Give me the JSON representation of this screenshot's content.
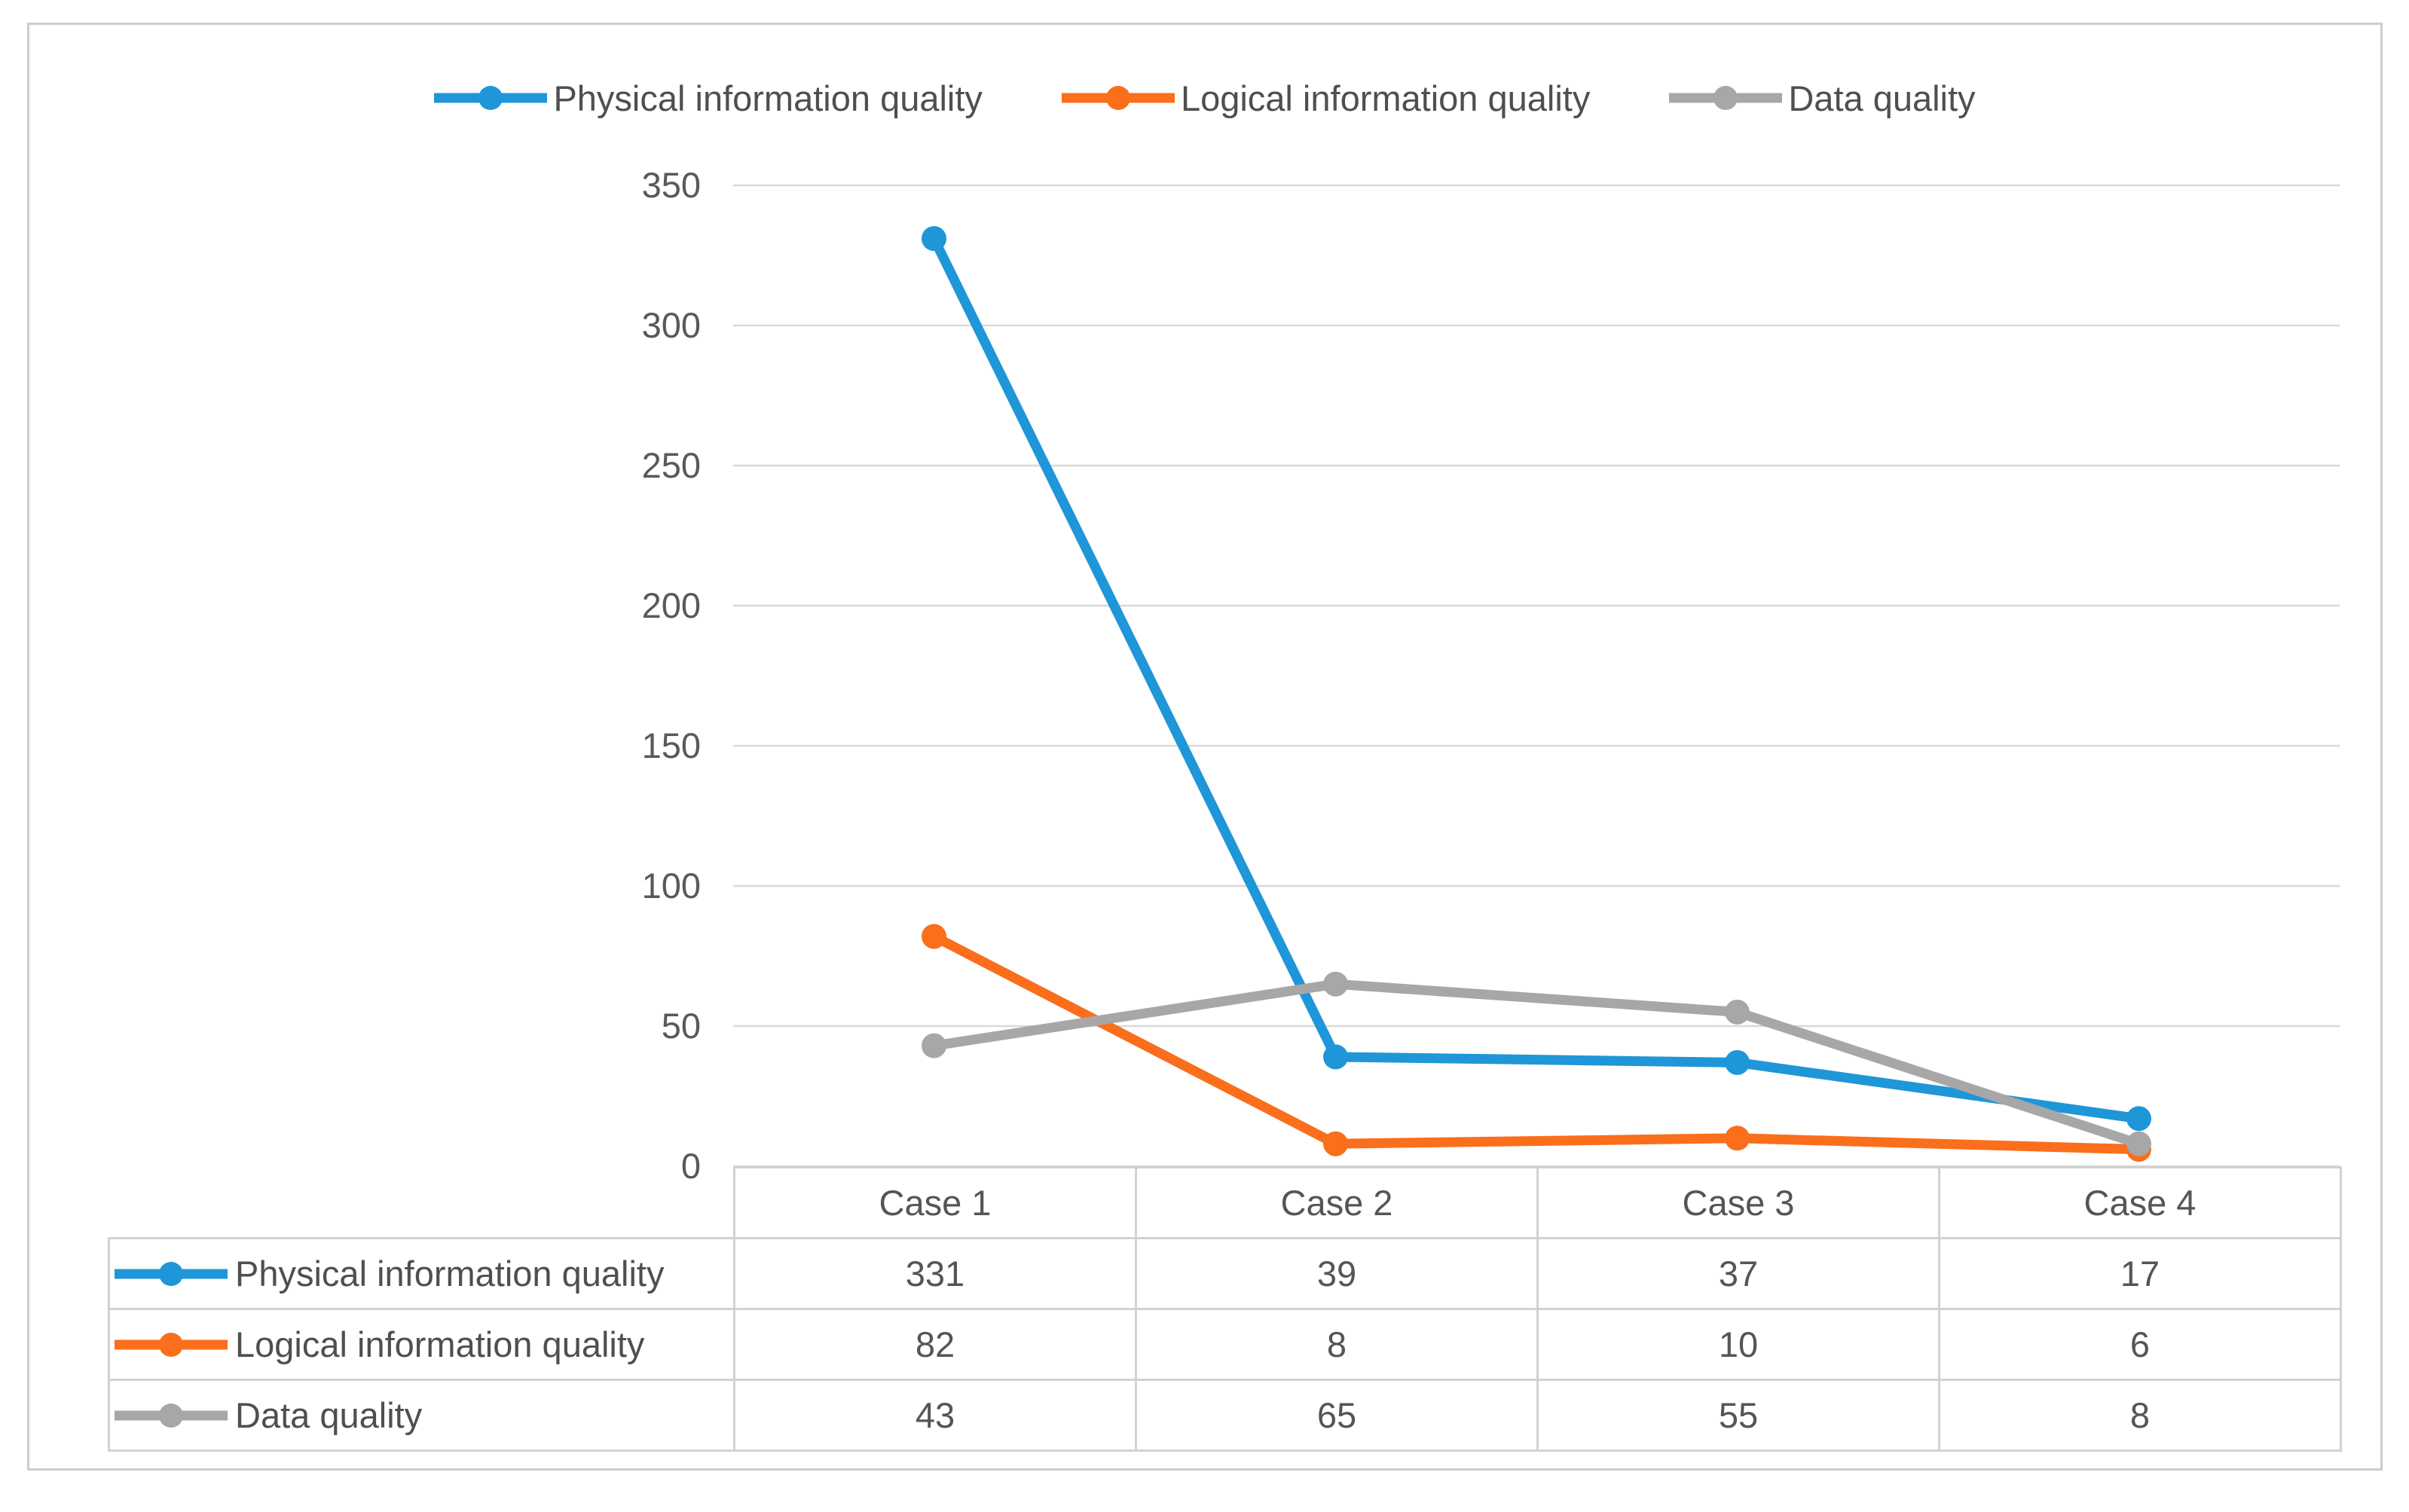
{
  "chart_data": {
    "type": "line",
    "categories": [
      "Case 1",
      "Case 2",
      "Case 3",
      "Case 4"
    ],
    "series": [
      {
        "name": "Physical information quality",
        "color": "#1F96D8",
        "values": [
          331,
          39,
          37,
          17
        ]
      },
      {
        "name": "Logical information quality",
        "color": "#FA6E1C",
        "values": [
          82,
          8,
          10,
          6
        ]
      },
      {
        "name": "Data quality",
        "color": "#A7A7A7",
        "values": [
          43,
          65,
          55,
          8
        ]
      }
    ],
    "ylim": [
      0,
      350
    ],
    "yticks": [
      0,
      50,
      100,
      150,
      200,
      250,
      300,
      350
    ],
    "grid": true,
    "gridline_color": "#d9d9d9",
    "legend_position": "top",
    "marker_style": "circle",
    "data_table_shown": true,
    "xlabel": "",
    "ylabel": ""
  }
}
